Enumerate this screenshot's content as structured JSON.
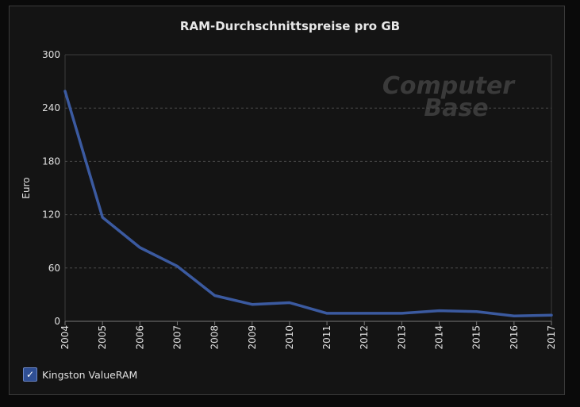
{
  "colors": {
    "background": "#141414",
    "series_line": "#3b5aa0",
    "grid": "#4a4a4a",
    "text": "#e0e0e0",
    "watermark": "#3a3a3a"
  },
  "watermark": {
    "top": "Computer",
    "bottom": "Base"
  },
  "legend": {
    "checkbox_icon": "checkmark-icon",
    "checkmark": "✓",
    "checked": true
  },
  "chart_data": {
    "type": "line",
    "title": "RAM-Durchschnittspreise pro GB",
    "xlabel": "",
    "ylabel": "Euro",
    "ylim": [
      0,
      300
    ],
    "yticks": [
      0,
      60,
      120,
      180,
      240,
      300
    ],
    "grid": true,
    "legend_position": "bottom-left",
    "categories": [
      "2004",
      "2005",
      "2006",
      "2007",
      "2008",
      "2009",
      "2010",
      "2011",
      "2012",
      "2013",
      "2014",
      "2015",
      "2016",
      "2017"
    ],
    "series": [
      {
        "name": "Kingston ValueRAM",
        "values": [
          259,
          117,
          83,
          62,
          29,
          19,
          21,
          9,
          9,
          9,
          12,
          11,
          6,
          7
        ]
      }
    ]
  }
}
